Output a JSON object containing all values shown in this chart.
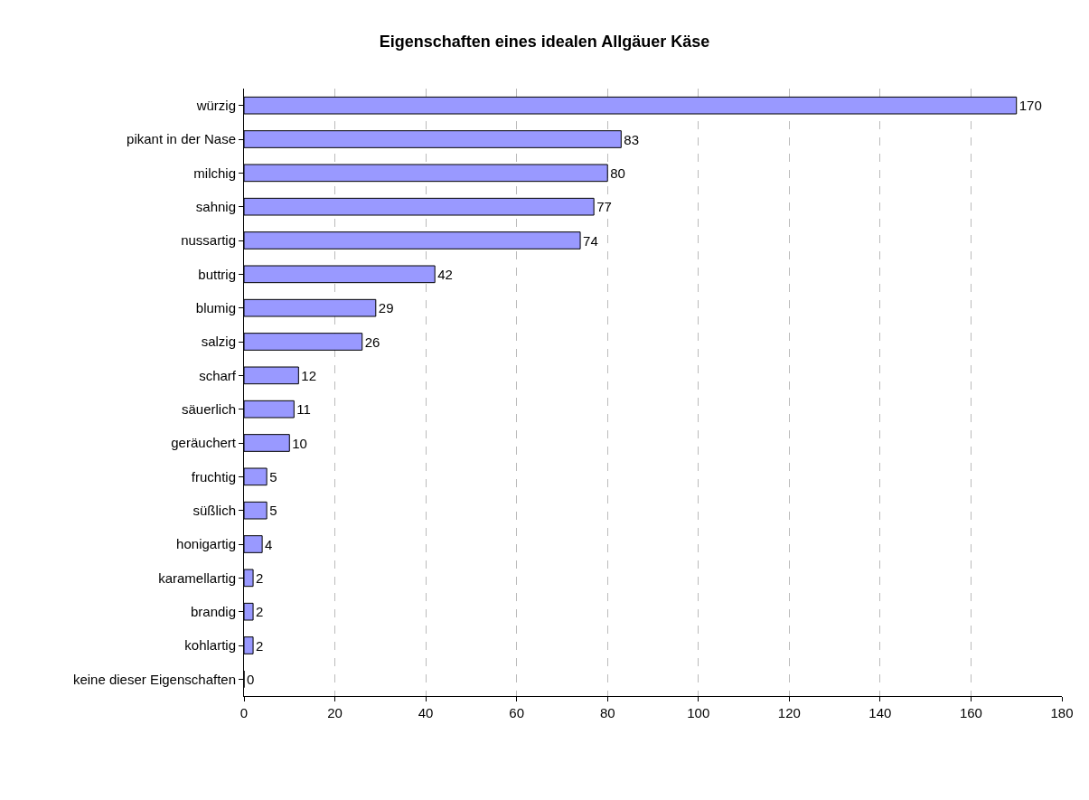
{
  "chart_data": {
    "type": "bar",
    "orientation": "horizontal",
    "title": "Eigenschaften eines idealen Allgäuer Käse",
    "categories": [
      "würzig",
      "pikant in der Nase",
      "milchig",
      "sahnig",
      "nussartig",
      "buttrig",
      "blumig",
      "salzig",
      "scharf",
      "säuerlich",
      "geräuchert",
      "fruchtig",
      "süßlich",
      "honigartig",
      "karamellartig",
      "brandig",
      "kohlartig",
      "keine dieser Eigenschaften"
    ],
    "values": [
      170,
      83,
      80,
      77,
      74,
      42,
      29,
      26,
      12,
      11,
      10,
      5,
      5,
      4,
      2,
      2,
      2,
      0
    ],
    "color": "#9999ff",
    "xlim": [
      0,
      180
    ],
    "xticks": [
      0,
      20,
      40,
      60,
      80,
      100,
      120,
      140,
      160,
      180
    ],
    "grid": "x",
    "data_labels": true,
    "legend": false
  }
}
